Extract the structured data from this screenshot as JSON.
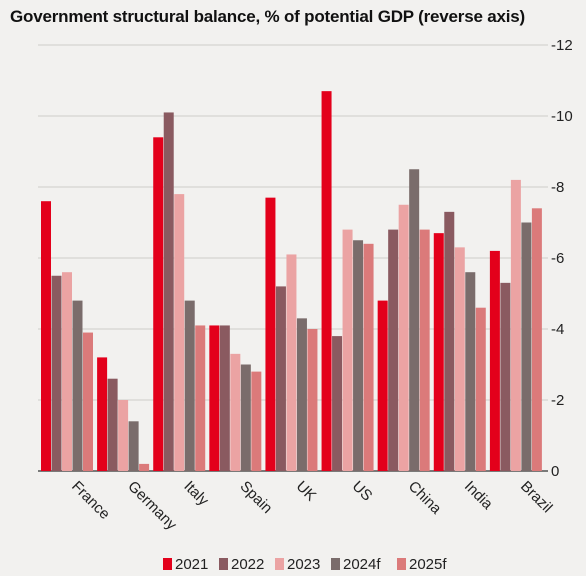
{
  "chart_data": {
    "type": "bar",
    "title": "Government structural balance, % of potential GDP (reverse axis)",
    "ylim": [
      -12,
      0
    ],
    "y_reversed": true,
    "y_ticks": [
      "-12",
      "-10",
      "-8",
      "-6",
      "-4",
      "-2",
      "0"
    ],
    "y_tick_values": [
      -12,
      -10,
      -8,
      -6,
      -4,
      -2,
      0
    ],
    "grid": true,
    "legend_position": "bottom",
    "categories": [
      "France",
      "Germany",
      "Italy",
      "Spain",
      "UK",
      "US",
      "China",
      "India",
      "Brazil"
    ],
    "series": [
      {
        "name": "2021",
        "color": "#e3001b",
        "values": [
          -7.6,
          -3.2,
          -9.4,
          -4.1,
          -7.7,
          -10.7,
          -4.8,
          -6.7,
          -6.2
        ]
      },
      {
        "name": "2022",
        "color": "#8a5a60",
        "values": [
          -5.5,
          -2.6,
          -10.1,
          -4.1,
          -5.2,
          -3.8,
          -6.8,
          -7.3,
          -5.3
        ]
      },
      {
        "name": "2023",
        "color": "#eba3a3",
        "values": [
          -5.6,
          -2.0,
          -7.8,
          -3.3,
          -6.1,
          -6.8,
          -7.5,
          -6.3,
          -8.2
        ]
      },
      {
        "name": "2024f",
        "color": "#7a6c6b",
        "values": [
          -4.8,
          -1.4,
          -4.8,
          -3.0,
          -4.3,
          -6.5,
          -8.5,
          -5.6,
          -7.0
        ]
      },
      {
        "name": "2025f",
        "color": "#db7a7a",
        "values": [
          -3.9,
          -0.2,
          -4.1,
          -2.8,
          -4.0,
          -6.4,
          -6.8,
          -4.6,
          -7.4
        ]
      }
    ]
  }
}
